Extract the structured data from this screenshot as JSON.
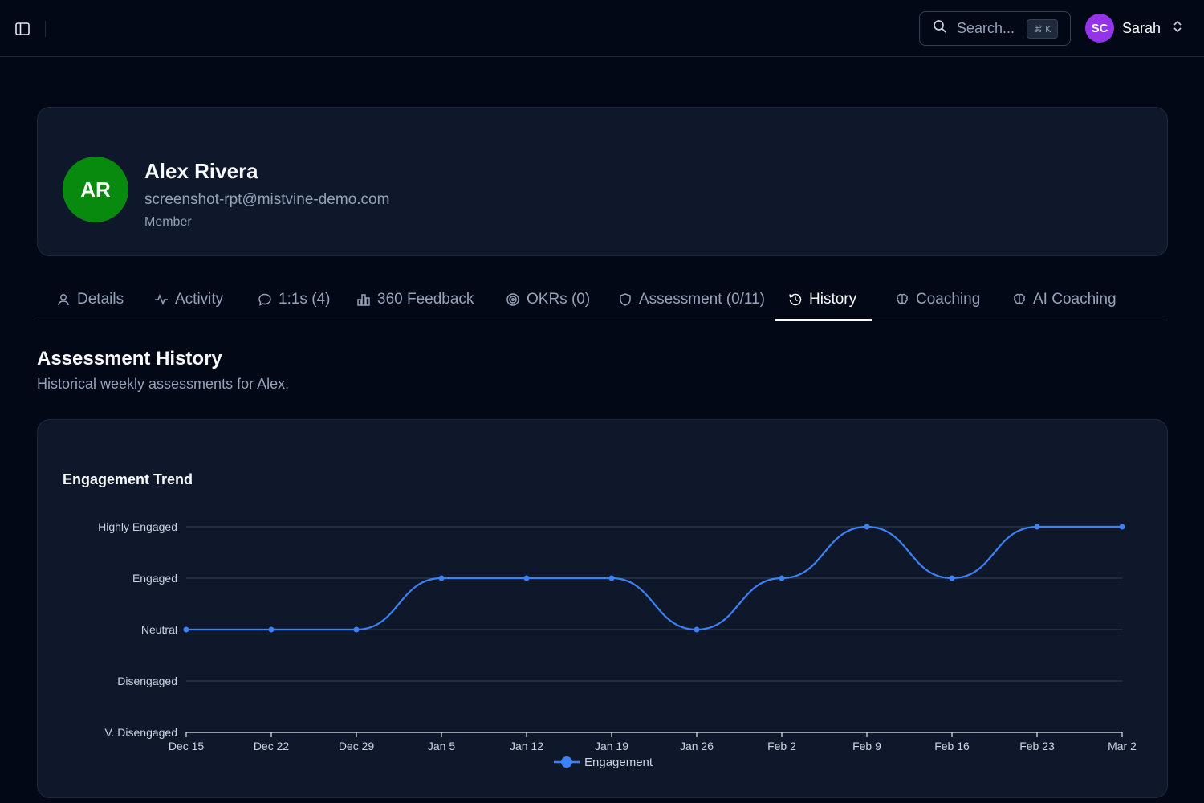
{
  "topbar": {
    "search_label": "Search...",
    "search_shortcut": "⌘ K",
    "user_initials": "SC",
    "user_name": "Sarah"
  },
  "profile": {
    "initials": "AR",
    "name": "Alex Rivera",
    "email": "screenshot-rpt@mistvine-demo.com",
    "role": "Member",
    "avatar_color": "#078a0e"
  },
  "tabs": [
    {
      "label": "Details",
      "icon": "user-icon",
      "active": false
    },
    {
      "label": "Activity",
      "icon": "activity-icon",
      "active": false
    },
    {
      "label": "1:1s (4)",
      "icon": "message-icon",
      "active": false
    },
    {
      "label": "360 Feedback",
      "icon": "bar-chart-icon",
      "active": false
    },
    {
      "label": "OKRs (0)",
      "icon": "target-icon",
      "active": false
    },
    {
      "label": "Assessment (0/11)",
      "icon": "shield-icon",
      "active": false
    },
    {
      "label": "History",
      "icon": "history-icon",
      "active": true
    },
    {
      "label": "Coaching",
      "icon": "brain-icon",
      "active": false
    },
    {
      "label": "AI Coaching",
      "icon": "brain-icon",
      "active": false
    }
  ],
  "section": {
    "title": "Assessment History",
    "subtitle": "Historical weekly assessments for Alex."
  },
  "chart_data": {
    "type": "line",
    "title": "Engagement Trend",
    "x": [
      "Dec 15",
      "Dec 22",
      "Dec 29",
      "Jan 5",
      "Jan 12",
      "Jan 19",
      "Jan 26",
      "Feb 2",
      "Feb 9",
      "Feb 16",
      "Feb 23",
      "Mar 2"
    ],
    "y_categories": [
      "V. Disengaged",
      "Disengaged",
      "Neutral",
      "Engaged",
      "Highly Engaged"
    ],
    "ylim": [
      0,
      4
    ],
    "series": [
      {
        "name": "Engagement",
        "values": [
          2,
          2,
          2,
          3,
          3,
          3,
          2,
          3,
          4,
          3,
          4,
          4
        ],
        "color": "#3b82f6"
      }
    ],
    "grid": true,
    "legend": "bottom-center"
  },
  "colors": {
    "background": "#030817",
    "card": "#0f172a",
    "border": "#1e293b",
    "muted_text": "#94a3b8",
    "accent_purple": "#9333ea"
  }
}
